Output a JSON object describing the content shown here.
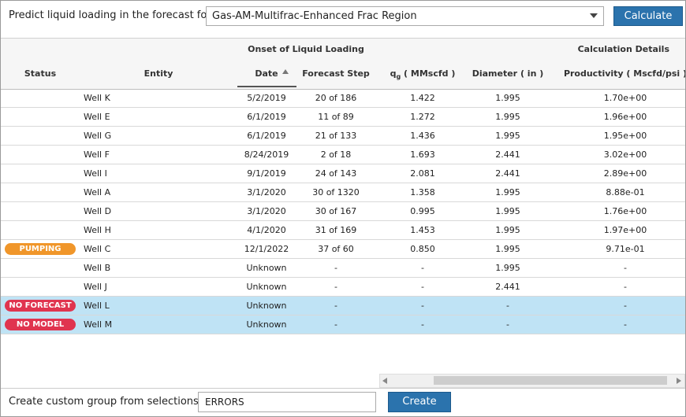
{
  "header": {
    "label": "Predict liquid loading in the forecast for",
    "selection": "Gas-AM-Multifrac-Enhanced Frac Region",
    "button": "Calculate"
  },
  "table": {
    "group_headers": [
      "Onset of Liquid Loading",
      "Calculation Details"
    ],
    "columns": {
      "status": "Status",
      "entity": "Entity",
      "date": "Date",
      "step": "Forecast Step",
      "qg": {
        "symbol": "q",
        "subscript": "g",
        "unit": " ( MMscfd )"
      },
      "diameter": "Diameter ( in )",
      "productivity": "Productivity ( Mscfd/psi )"
    },
    "rows": [
      {
        "entity": "Well K",
        "date": "5/2/2019",
        "step": "20 of 186",
        "qg": "1.422",
        "diameter": "1.995",
        "productivity": "1.70e+00"
      },
      {
        "entity": "Well E",
        "date": "6/1/2019",
        "step": "11 of 89",
        "qg": "1.272",
        "diameter": "1.995",
        "productivity": "1.96e+00"
      },
      {
        "entity": "Well G",
        "date": "6/1/2019",
        "step": "21 of 133",
        "qg": "1.436",
        "diameter": "1.995",
        "productivity": "1.95e+00"
      },
      {
        "entity": "Well F",
        "date": "8/24/2019",
        "step": "2 of 18",
        "qg": "1.693",
        "diameter": "2.441",
        "productivity": "3.02e+00"
      },
      {
        "entity": "Well I",
        "date": "9/1/2019",
        "step": "24 of 143",
        "qg": "2.081",
        "diameter": "2.441",
        "productivity": "2.89e+00"
      },
      {
        "entity": "Well A",
        "date": "3/1/2020",
        "step": "30 of 1320",
        "qg": "1.358",
        "diameter": "1.995",
        "productivity": "8.88e-01"
      },
      {
        "entity": "Well D",
        "date": "3/1/2020",
        "step": "30 of 167",
        "qg": "0.995",
        "diameter": "1.995",
        "productivity": "1.76e+00"
      },
      {
        "entity": "Well H",
        "date": "4/1/2020",
        "step": "31 of 169",
        "qg": "1.453",
        "diameter": "1.995",
        "productivity": "1.97e+00"
      },
      {
        "status": {
          "label": "PUMPING",
          "color": "#f0962a"
        },
        "entity": "Well C",
        "date": "12/1/2022",
        "step": "37 of 60",
        "qg": "0.850",
        "diameter": "1.995",
        "productivity": "9.71e-01"
      },
      {
        "entity": "Well B",
        "date": "Unknown",
        "step": "-",
        "qg": "-",
        "diameter": "1.995",
        "productivity": "-"
      },
      {
        "entity": "Well J",
        "date": "Unknown",
        "step": "-",
        "qg": "-",
        "diameter": "2.441",
        "productivity": "-"
      },
      {
        "status": {
          "label": "NO FORECAST",
          "color": "#e0344f"
        },
        "highlight": true,
        "entity": "Well L",
        "date": "Unknown",
        "step": "-",
        "qg": "-",
        "diameter": "-",
        "productivity": "-"
      },
      {
        "status": {
          "label": "NO MODEL",
          "color": "#e0344f"
        },
        "highlight": true,
        "entity": "Well M",
        "date": "Unknown",
        "step": "-",
        "qg": "-",
        "diameter": "-",
        "productivity": "-"
      }
    ]
  },
  "footer": {
    "label": "Create custom group from selections",
    "input": "ERRORS",
    "button": "Create"
  }
}
